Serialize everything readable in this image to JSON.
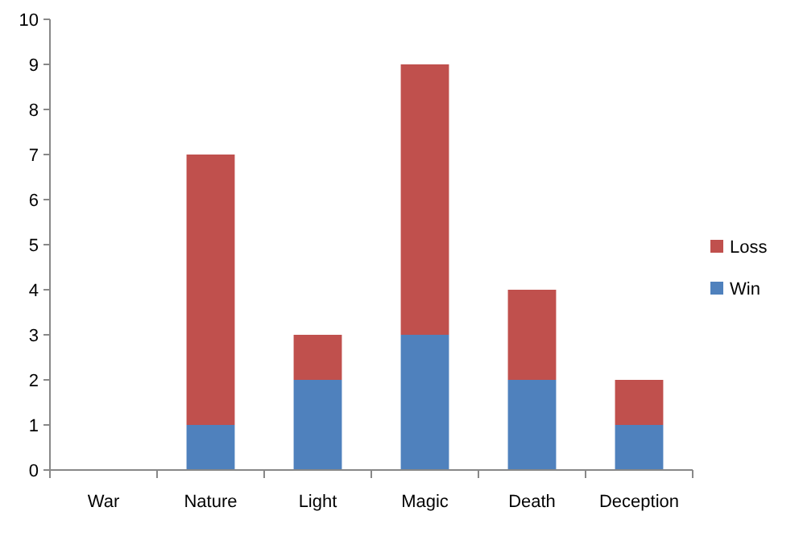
{
  "chart_data": {
    "type": "bar",
    "stacked": true,
    "categories": [
      "War",
      "Nature",
      "Light",
      "Magic",
      "Death",
      "Deception"
    ],
    "series": [
      {
        "name": "Win",
        "color": "#4f81bd",
        "values": [
          0,
          1,
          2,
          3,
          2,
          1
        ]
      },
      {
        "name": "Loss",
        "color": "#c0504d",
        "values": [
          0,
          6,
          1,
          6,
          2,
          1
        ]
      }
    ],
    "ylim": [
      0,
      10
    ],
    "yticks": [
      0,
      1,
      2,
      3,
      4,
      5,
      6,
      7,
      8,
      9,
      10
    ],
    "grid": false,
    "legend": "right"
  }
}
